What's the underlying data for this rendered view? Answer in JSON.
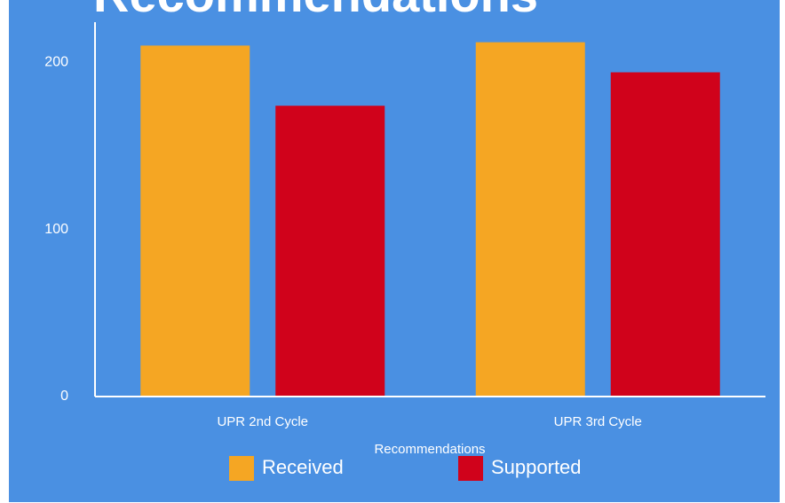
{
  "chart_data": {
    "type": "bar",
    "title": "Recommendations",
    "categories": [
      "UPR 2nd Cycle",
      "UPR 3rd Cycle"
    ],
    "x_label": "Recommendations",
    "series": [
      {
        "name": "Received",
        "color": "#f5a623",
        "values": [
          210,
          212
        ]
      },
      {
        "name": "Supported",
        "color": "#d0021b",
        "values": [
          174,
          194
        ]
      }
    ],
    "ylim": [
      0,
      224
    ],
    "yticks": [
      0,
      100,
      200
    ],
    "grid": false
  }
}
